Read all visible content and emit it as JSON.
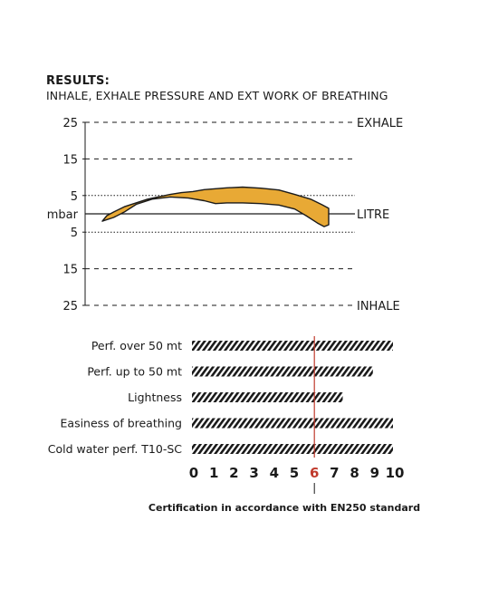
{
  "header": {
    "title": "RESULTS:",
    "subtitle": "INHALE, EXHALE PRESSURE AND EXT WORK OF BREATHING"
  },
  "chart_data": [
    {
      "type": "area",
      "yunit_label": "mbar",
      "y_ticks": [
        {
          "label": "25",
          "value": 25
        },
        {
          "label": "15",
          "value": 15
        },
        {
          "label": "5",
          "value": 5
        },
        {
          "label": "5",
          "value": -5
        },
        {
          "label": "15",
          "value": -15
        },
        {
          "label": "25",
          "value": -25
        }
      ],
      "ylim": [
        -25,
        25
      ],
      "side_labels": {
        "top": "EXHALE",
        "middle": "LITRE",
        "bottom": "INHALE"
      },
      "fill_color": "#e8a935",
      "outline_color": "#1a1a1a",
      "series": [
        {
          "upper": [
            [
              0,
              -2
            ],
            [
              0.02,
              -0.5
            ],
            [
              0.05,
              0.5
            ],
            [
              0.1,
              2
            ],
            [
              0.2,
              4
            ],
            [
              0.3,
              5.3
            ],
            [
              0.35,
              5.8
            ],
            [
              0.4,
              6.1
            ],
            [
              0.45,
              6.6
            ],
            [
              0.55,
              7.1
            ],
            [
              0.62,
              7.3
            ],
            [
              0.7,
              7.0
            ],
            [
              0.78,
              6.5
            ],
            [
              0.85,
              5.3
            ],
            [
              0.92,
              4.0
            ],
            [
              0.97,
              2.5
            ],
            [
              1.0,
              1.5
            ],
            [
              1.0,
              -3.0
            ]
          ],
          "lower": [
            [
              0,
              -2
            ],
            [
              0.05,
              -1.0
            ],
            [
              0.1,
              0.6
            ],
            [
              0.15,
              2.6
            ],
            [
              0.22,
              4.0
            ],
            [
              0.3,
              4.6
            ],
            [
              0.38,
              4.3
            ],
            [
              0.45,
              3.6
            ],
            [
              0.5,
              2.8
            ],
            [
              0.55,
              3.0
            ],
            [
              0.62,
              3.0
            ],
            [
              0.7,
              2.8
            ],
            [
              0.78,
              2.4
            ],
            [
              0.85,
              1.3
            ],
            [
              0.9,
              -0.5
            ],
            [
              0.95,
              -2.5
            ],
            [
              0.98,
              -3.5
            ],
            [
              1.0,
              -3.0
            ]
          ]
        }
      ]
    },
    {
      "type": "bar",
      "orientation": "horizontal",
      "categories": [
        "Perf. over 50 mt",
        "Perf. up to 50 mt",
        "Lightness",
        "Easiness of breathing",
        "Cold water perf.  T10-SC"
      ],
      "values": [
        10,
        9,
        7.5,
        10,
        10
      ],
      "scale_ticks": [
        "0",
        "1",
        "2",
        "3",
        "4",
        "5",
        "6",
        "7",
        "8",
        "9",
        "10"
      ],
      "xlim": [
        0,
        10
      ],
      "reference_value": 6,
      "reference_label": "6",
      "reference_color": "#c0392b",
      "hatch_color": "#1a1a1a"
    }
  ],
  "footer": {
    "certification": "Certification in accordance with EN250 standard"
  }
}
